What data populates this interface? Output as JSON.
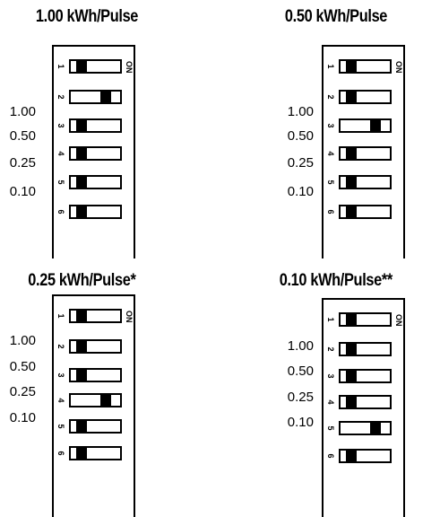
{
  "on_label": "ON",
  "panels": [
    {
      "title": "1.00 kWh/Pulse",
      "labels": [
        "1.00",
        "0.50",
        "0.25",
        "0.10"
      ],
      "switches": [
        {
          "number": "1",
          "state": "off"
        },
        {
          "number": "2",
          "state": "on"
        },
        {
          "number": "3",
          "state": "off"
        },
        {
          "number": "4",
          "state": "off"
        },
        {
          "number": "5",
          "state": "off"
        },
        {
          "number": "6",
          "state": "off"
        }
      ]
    },
    {
      "title": "0.50 kWh/Pulse",
      "labels": [
        "1.00",
        "0.50",
        "0.25",
        "0.10"
      ],
      "switches": [
        {
          "number": "1",
          "state": "off"
        },
        {
          "number": "2",
          "state": "off"
        },
        {
          "number": "3",
          "state": "on"
        },
        {
          "number": "4",
          "state": "off"
        },
        {
          "number": "5",
          "state": "off"
        },
        {
          "number": "6",
          "state": "off"
        }
      ]
    },
    {
      "title": "0.25 kWh/Pulse*",
      "labels": [
        "1.00",
        "0.50",
        "0.25",
        "0.10"
      ],
      "switches": [
        {
          "number": "1",
          "state": "off"
        },
        {
          "number": "2",
          "state": "off"
        },
        {
          "number": "3",
          "state": "off"
        },
        {
          "number": "4",
          "state": "on"
        },
        {
          "number": "5",
          "state": "off"
        },
        {
          "number": "6",
          "state": "off"
        }
      ]
    },
    {
      "title": "0.10 kWh/Pulse**",
      "labels": [
        "1.00",
        "0.50",
        "0.25",
        "0.10"
      ],
      "switches": [
        {
          "number": "1",
          "state": "off"
        },
        {
          "number": "2",
          "state": "off"
        },
        {
          "number": "3",
          "state": "off"
        },
        {
          "number": "4",
          "state": "off"
        },
        {
          "number": "5",
          "state": "on"
        },
        {
          "number": "6",
          "state": "off"
        }
      ]
    }
  ]
}
